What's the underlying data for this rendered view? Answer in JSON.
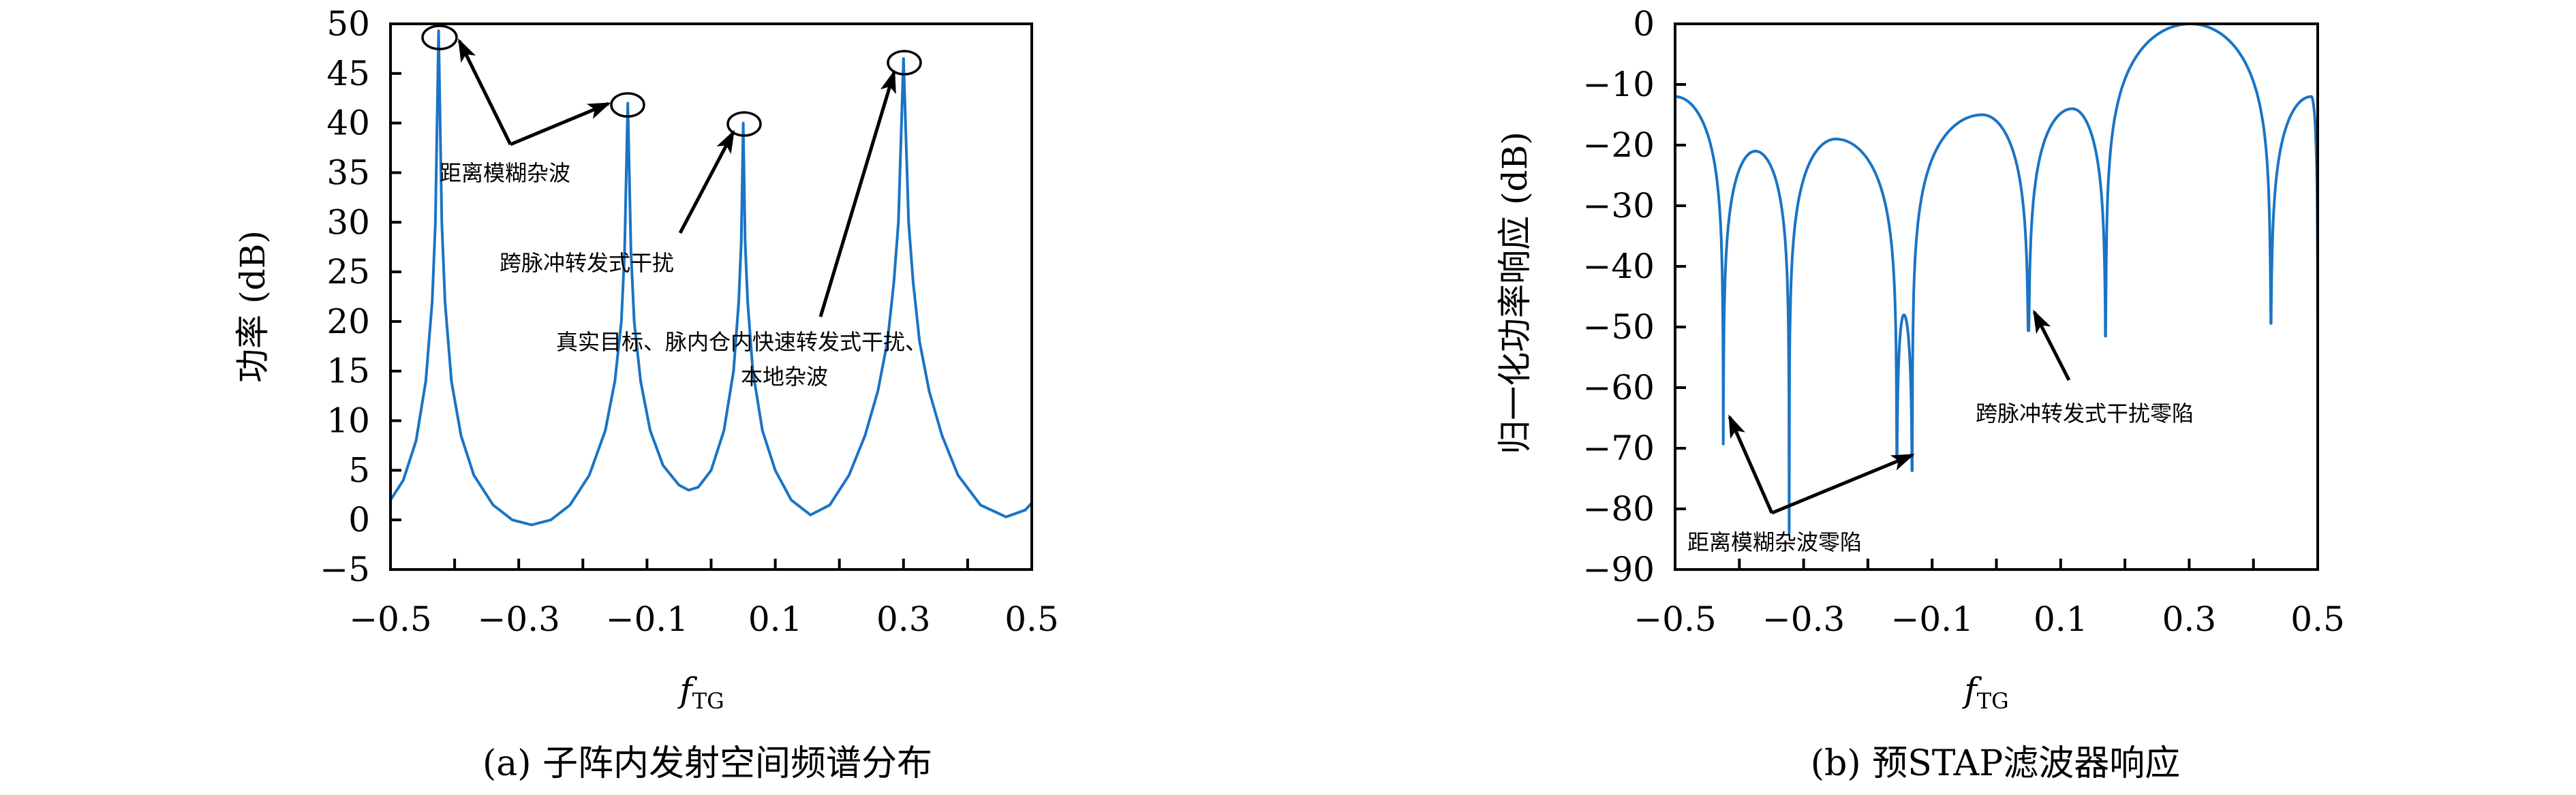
{
  "colors": {
    "line": "#1a74c4",
    "axes": "#000000"
  },
  "chart_data": [
    {
      "type": "line",
      "caption": "(a) 子阵内发射空间频谱分布",
      "xlabel_main": "f",
      "xlabel_sub": "TG",
      "ylabel": "功率 (dB)",
      "xlim": [
        -0.5,
        0.5
      ],
      "ylim": [
        -5,
        50
      ],
      "xticks": [
        -0.5,
        -0.3,
        -0.1,
        0.1,
        0.3,
        0.5
      ],
      "xtick_labels": [
        "−0.5",
        "−0.3",
        "−0.1",
        "0.1",
        "0.3",
        "0.5"
      ],
      "yticks": [
        -5,
        0,
        5,
        10,
        15,
        20,
        25,
        30,
        35,
        40,
        45,
        50
      ],
      "ytick_labels": [
        "−5",
        "0",
        "5",
        "10",
        "15",
        "20",
        "25",
        "30",
        "35",
        "40",
        "45",
        "50"
      ],
      "grid": false,
      "x": [
        -0.5,
        -0.48,
        -0.46,
        -0.445,
        -0.435,
        -0.43,
        -0.425,
        -0.42,
        -0.415,
        -0.405,
        -0.39,
        -0.37,
        -0.34,
        -0.31,
        -0.28,
        -0.25,
        -0.22,
        -0.19,
        -0.165,
        -0.15,
        -0.14,
        -0.135,
        -0.13,
        -0.125,
        -0.12,
        -0.11,
        -0.095,
        -0.075,
        -0.05,
        -0.035,
        -0.02,
        0,
        0.02,
        0.035,
        0.043,
        0.047,
        0.05,
        0.053,
        0.057,
        0.065,
        0.08,
        0.1,
        0.125,
        0.155,
        0.185,
        0.215,
        0.24,
        0.26,
        0.275,
        0.285,
        0.292,
        0.3,
        0.308,
        0.315,
        0.325,
        0.34,
        0.36,
        0.385,
        0.42,
        0.46,
        0.49,
        0.5
      ],
      "y": [
        2,
        4,
        8,
        14,
        22,
        30,
        49.3,
        30,
        22,
        14,
        8.5,
        4.5,
        1.5,
        0,
        -0.5,
        0,
        1.5,
        4.5,
        9,
        14,
        20,
        27,
        42,
        27,
        20,
        14,
        9,
        5.5,
        3.5,
        3,
        3.3,
        5,
        9,
        15,
        22,
        28,
        40,
        28,
        22,
        15,
        9,
        5,
        2,
        0.5,
        1.5,
        4.5,
        8.5,
        13,
        18,
        24,
        30,
        46.5,
        30,
        24,
        18,
        13,
        8.5,
        4.5,
        1.5,
        0.3,
        1,
        1.7
      ],
      "annotations": [
        {
          "text": "距离模糊杂波",
          "targets": [
            -0.425,
            -0.13
          ]
        },
        {
          "text": "跨脉冲转发式干扰",
          "targets": [
            0.05
          ]
        },
        {
          "text": "真实目标、脉内仓内快速转发式干扰、",
          "text2": "本地杂波",
          "targets": [
            0.3
          ]
        }
      ]
    },
    {
      "type": "line",
      "caption": "(b) 预STAP滤波器响应",
      "xlabel_main": "f",
      "xlabel_sub": "TG",
      "ylabel": "归一化功率响应 (dB)",
      "xlim": [
        -0.5,
        0.5
      ],
      "ylim": [
        -90,
        0
      ],
      "xticks": [
        -0.5,
        -0.3,
        -0.1,
        0.1,
        0.3,
        0.5
      ],
      "xtick_labels": [
        "−0.5",
        "−0.3",
        "−0.1",
        "0.1",
        "0.3",
        "0.5"
      ],
      "yticks": [
        0,
        -10,
        -20,
        -30,
        -40,
        -50,
        -60,
        -70,
        -80,
        -90
      ],
      "ytick_labels": [
        "0",
        "−10",
        "−20",
        "−30",
        "−40",
        "−50",
        "−60",
        "−70",
        "−80",
        "−90"
      ],
      "grid": false,
      "nulls": [
        {
          "x": -0.425,
          "y": -69.3
        },
        {
          "x": -0.3225,
          "y": -84
        },
        {
          "x": -0.155,
          "y": -71.3
        },
        {
          "x": -0.131,
          "y": -73.7
        },
        {
          "x": 0.05,
          "y": -50.6
        },
        {
          "x": 0.17,
          "y": -51.5
        },
        {
          "x": 0.427,
          "y": -49.4
        }
      ],
      "lobes": [
        {
          "from": -0.5,
          "to": -0.425,
          "peak_x": -0.5,
          "peak_y": -12
        },
        {
          "from": -0.425,
          "to": -0.3225,
          "peak_x": -0.375,
          "peak_y": -21
        },
        {
          "from": -0.3225,
          "to": -0.155,
          "peak_x": -0.25,
          "peak_y": -19
        },
        {
          "from": -0.155,
          "to": -0.131,
          "peak_x": -0.144,
          "peak_y": -48
        },
        {
          "from": -0.131,
          "to": 0.05,
          "peak_x": -0.022,
          "peak_y": -15
        },
        {
          "from": 0.05,
          "to": 0.17,
          "peak_x": 0.118,
          "peak_y": -14
        },
        {
          "from": 0.17,
          "to": 0.427,
          "peak_x": 0.302,
          "peak_y": 0
        },
        {
          "from": 0.427,
          "to": 0.5,
          "peak_x": 0.49,
          "peak_y": -12
        }
      ],
      "annotations": [
        {
          "text": "距离模糊杂波零陷",
          "targets": [
            -0.425,
            -0.131
          ]
        },
        {
          "text": "跨脉冲转发式干扰零陷",
          "targets": [
            0.05
          ]
        }
      ]
    }
  ]
}
